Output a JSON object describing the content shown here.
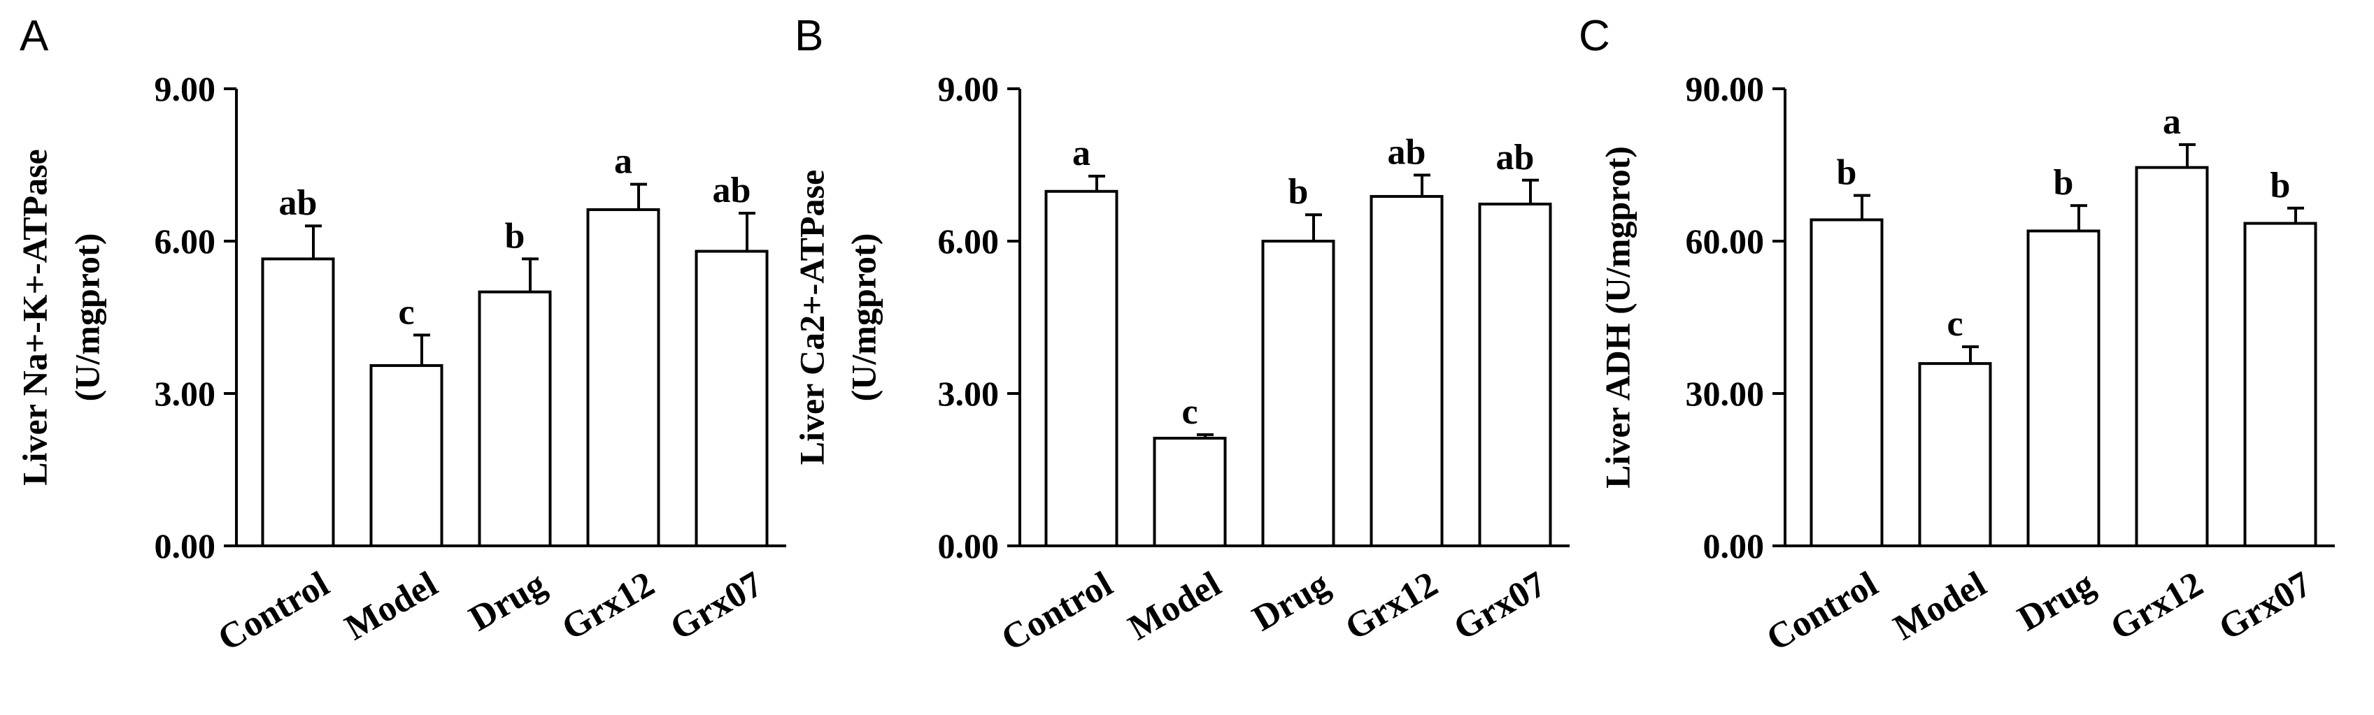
{
  "chart_data": [
    {
      "type": "bar",
      "panel_label": "A",
      "ylabel_line1": "Liver Na+-K+-ATPase",
      "ylabel_line2": "(U/mgprot)",
      "categories": [
        "Control",
        "Model",
        "Drug",
        "Grx12",
        "Grx07"
      ],
      "values": [
        5.65,
        3.55,
        5.0,
        6.62,
        5.8
      ],
      "errors": [
        0.65,
        0.6,
        0.65,
        0.5,
        0.75
      ],
      "significance": [
        "ab",
        "c",
        "b",
        "a",
        "ab"
      ],
      "ylim": [
        0,
        9
      ],
      "yticks": [
        "0.00",
        "3.00",
        "6.00",
        "9.00"
      ],
      "ytick_values": [
        0,
        3,
        6,
        9
      ]
    },
    {
      "type": "bar",
      "panel_label": "B",
      "ylabel_line1": "Liver Ca2+-ATPase",
      "ylabel_line2": "(U/mgprot)",
      "categories": [
        "Control",
        "Model",
        "Drug",
        "Grx12",
        "Grx07"
      ],
      "values": [
        6.98,
        2.12,
        6.0,
        6.88,
        6.73
      ],
      "errors": [
        0.3,
        0.07,
        0.52,
        0.42,
        0.47
      ],
      "significance": [
        "a",
        "c",
        "b",
        "ab",
        "ab"
      ],
      "ylim": [
        0,
        9
      ],
      "yticks": [
        "0.00",
        "3.00",
        "6.00",
        "9.00"
      ],
      "ytick_values": [
        0,
        3,
        6,
        9
      ]
    },
    {
      "type": "bar",
      "panel_label": "C",
      "ylabel_line1": "Liver ADH (U/mgprot)",
      "ylabel_line2": "",
      "categories": [
        "Control",
        "Model",
        "Drug",
        "Grx12",
        "Grx07"
      ],
      "values": [
        64.2,
        35.9,
        62.0,
        74.5,
        63.5
      ],
      "errors": [
        4.8,
        3.3,
        5.0,
        4.5,
        3.0
      ],
      "significance": [
        "b",
        "c",
        "b",
        "a",
        "b"
      ],
      "ylim": [
        0,
        90
      ],
      "yticks": [
        "0.00",
        "30.00",
        "60.00",
        "90.00"
      ],
      "ytick_values": [
        0,
        30,
        60,
        90
      ]
    }
  ]
}
